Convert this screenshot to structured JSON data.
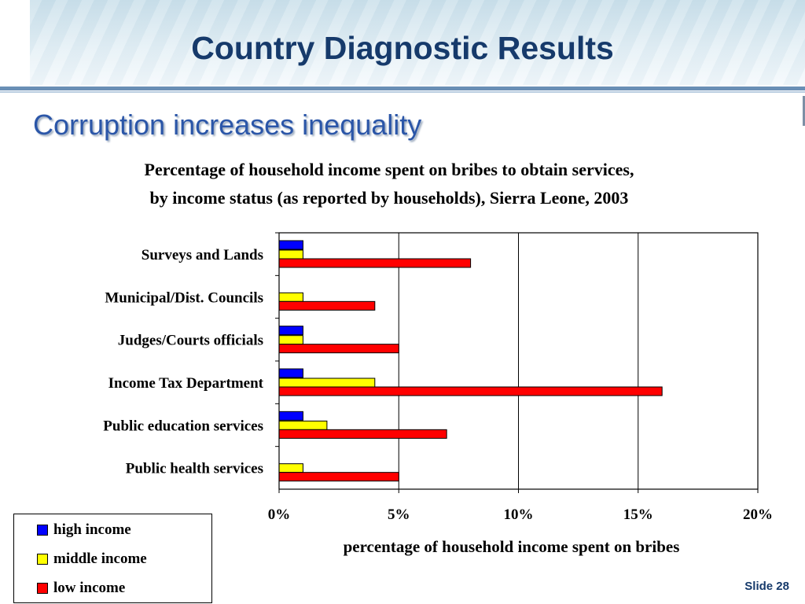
{
  "slide": {
    "title": "Country Diagnostic Results",
    "subtitle": "Corruption increases inequality",
    "slide_number": "Slide 28"
  },
  "chart_data": {
    "type": "bar",
    "orientation": "horizontal",
    "title_lines": [
      "Percentage of household income spent on bribes to obtain services,",
      "by income status  (as reported by households), Sierra Leone, 2003"
    ],
    "xlabel": "percentage of household income spent on bribes",
    "ylabel": "",
    "xlim": [
      0,
      20
    ],
    "x_ticks": [
      "0%",
      "5%",
      "10%",
      "15%",
      "20%"
    ],
    "grid": "vertical",
    "categories": [
      "Surveys and Lands",
      "Municipal/Dist. Councils",
      "Judges/Courts officials",
      "Income Tax Department",
      "Public education services",
      "Public health services"
    ],
    "series": [
      {
        "name": "high income",
        "color": "#0000ff",
        "values": [
          1,
          0,
          1,
          1,
          1,
          0
        ]
      },
      {
        "name": "middle income",
        "color": "#ffff00",
        "values": [
          1,
          1,
          1,
          4,
          2,
          1
        ]
      },
      {
        "name": "low income",
        "color": "#ff0000",
        "values": [
          8,
          4,
          5,
          16,
          7,
          5
        ]
      }
    ],
    "legend_position": "bottom-left"
  }
}
